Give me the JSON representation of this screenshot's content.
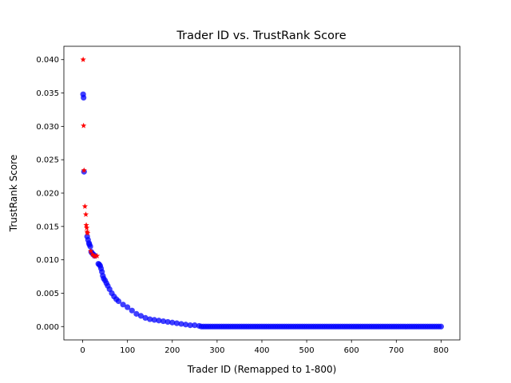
{
  "chart_data": {
    "type": "scatter",
    "title": "Trader ID vs. TrustRank Score",
    "xlabel": "Trader ID (Remapped to 1-800)",
    "ylabel": "TrustRank Score",
    "xlim": [
      -42,
      842
    ],
    "ylim": [
      -0.002,
      0.042
    ],
    "xticks": [
      0,
      100,
      200,
      300,
      400,
      500,
      600,
      700,
      800
    ],
    "yticks": [
      0.0,
      0.005,
      0.01,
      0.015,
      0.02,
      0.025,
      0.03,
      0.035,
      0.04
    ],
    "ytick_labels": [
      "0.000",
      "0.005",
      "0.010",
      "0.015",
      "0.020",
      "0.025",
      "0.030",
      "0.035",
      "0.040"
    ],
    "grid": false,
    "legend": "none",
    "series": [
      {
        "marker": "circle",
        "color": "#0000ff",
        "x_range": [
          1,
          800
        ],
        "points": [
          [
            1,
            0.0348
          ],
          [
            2,
            0.0343
          ],
          [
            3,
            0.0232
          ],
          [
            10,
            0.0135
          ],
          [
            12,
            0.013
          ],
          [
            14,
            0.0125
          ],
          [
            15,
            0.0123
          ],
          [
            17,
            0.012
          ],
          [
            19,
            0.0112
          ],
          [
            21,
            0.011
          ],
          [
            24,
            0.0108
          ],
          [
            27,
            0.0106
          ],
          [
            35,
            0.0094
          ],
          [
            37,
            0.0093
          ],
          [
            39,
            0.0091
          ],
          [
            41,
            0.0087
          ],
          [
            43,
            0.0082
          ],
          [
            45,
            0.0076
          ],
          [
            47,
            0.0072
          ],
          [
            50,
            0.0069
          ],
          [
            53,
            0.0065
          ],
          [
            56,
            0.0061
          ],
          [
            60,
            0.0056
          ],
          [
            65,
            0.005
          ],
          [
            70,
            0.0045
          ],
          [
            75,
            0.0041
          ],
          [
            80,
            0.0038
          ],
          [
            90,
            0.0033
          ],
          [
            100,
            0.0029
          ],
          [
            110,
            0.0024
          ],
          [
            120,
            0.0019
          ],
          [
            130,
            0.0016
          ],
          [
            140,
            0.0013
          ],
          [
            150,
            0.0011
          ],
          [
            160,
            0.001
          ],
          [
            170,
            0.0009
          ],
          [
            180,
            0.0008
          ],
          [
            190,
            0.0007
          ],
          [
            200,
            0.0006
          ],
          [
            210,
            0.0005
          ],
          [
            220,
            0.0004
          ],
          [
            230,
            0.0003
          ],
          [
            240,
            0.0002
          ],
          [
            250,
            0.0002
          ],
          [
            260,
            0.0001
          ]
        ],
        "tail": {
          "from": 265,
          "to": 800,
          "value": 0.0
        }
      },
      {
        "marker": "star",
        "color": "#ff0000",
        "points": [
          [
            1,
            0.04
          ],
          [
            2,
            0.0301
          ],
          [
            3,
            0.0234
          ],
          [
            5,
            0.018
          ],
          [
            7,
            0.0168
          ],
          [
            8,
            0.0152
          ],
          [
            9,
            0.0148
          ],
          [
            10,
            0.0142
          ],
          [
            11,
            0.014
          ],
          [
            18,
            0.0113
          ],
          [
            22,
            0.0108
          ],
          [
            25,
            0.0106
          ],
          [
            28,
            0.0105
          ],
          [
            32,
            0.0106
          ]
        ]
      }
    ]
  }
}
